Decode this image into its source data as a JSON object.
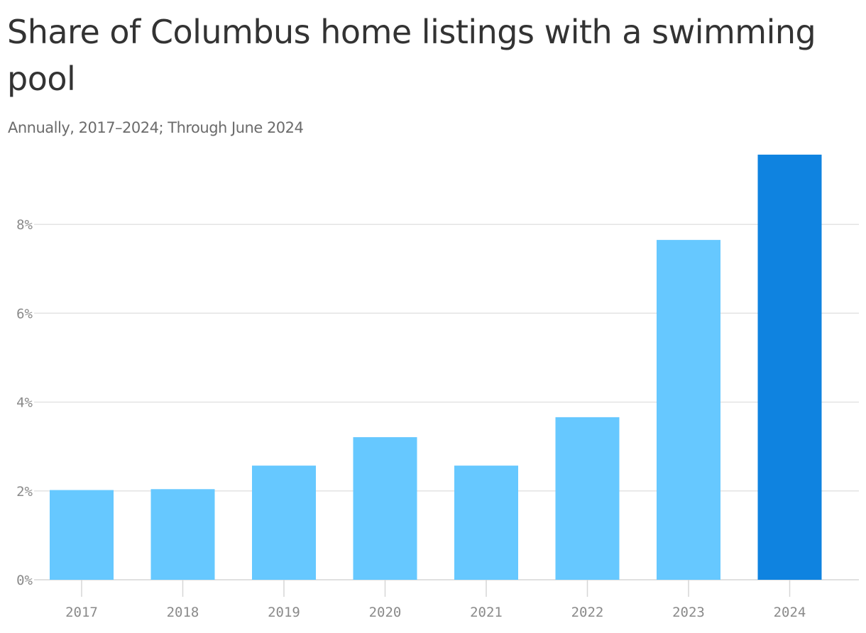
{
  "chart_data": {
    "type": "bar",
    "title": "Share of Columbus home listings with a swimming pool",
    "subtitle": "Annually, 2017–2024; Through June 2024",
    "categories": [
      "2017",
      "2018",
      "2019",
      "2020",
      "2021",
      "2022",
      "2023",
      "2024"
    ],
    "values": [
      2.02,
      2.04,
      2.57,
      3.21,
      2.57,
      3.66,
      7.65,
      9.57
    ],
    "highlight_index": 7,
    "yticks": [
      0,
      2,
      4,
      6,
      8
    ],
    "ytick_labels": [
      "0%",
      "2%",
      "4%",
      "6%",
      "8%"
    ],
    "ylim": [
      0,
      9.8
    ],
    "grid": true,
    "colors": {
      "bar": "#66c8ff",
      "highlight": "#0f83e0",
      "grid": "#e3e3e3",
      "axis": "#d6d6d6",
      "tick_text": "#8a8a8a"
    }
  }
}
